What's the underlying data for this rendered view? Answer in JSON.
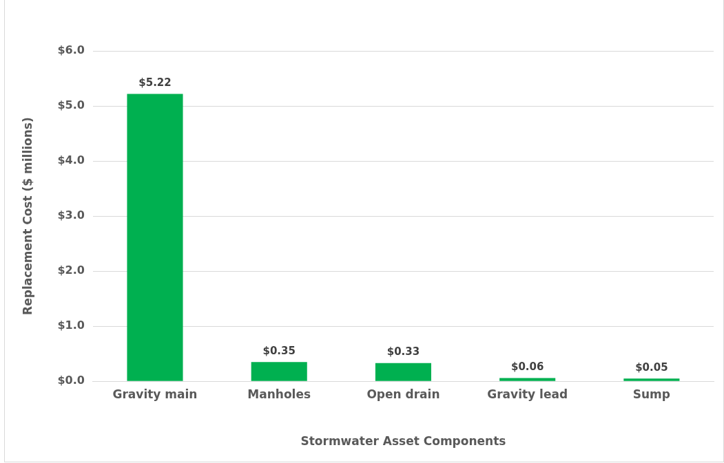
{
  "chart_data": {
    "type": "bar",
    "xlabel": "Stormwater Asset Components",
    "ylabel": "Replacement Cost ($ millions)",
    "categories": [
      "Gravity main",
      "Manholes",
      "Open drain",
      "Gravity lead",
      "Sump"
    ],
    "values": [
      5.22,
      0.35,
      0.33,
      0.06,
      0.05
    ],
    "value_labels": [
      "$5.22",
      "$0.35",
      "$0.33",
      "$0.06",
      "$0.05"
    ],
    "color": "#00b050",
    "ylim": [
      0,
      6
    ],
    "yticks": [
      {
        "value": 0,
        "label": "$0.0"
      },
      {
        "value": 1,
        "label": "$1.0"
      },
      {
        "value": 2,
        "label": "$2.0"
      },
      {
        "value": 3,
        "label": "$3.0"
      },
      {
        "value": 4,
        "label": "$4.0"
      },
      {
        "value": 5,
        "label": "$5.0"
      },
      {
        "value": 6,
        "label": "$6.0"
      }
    ],
    "grid": "y",
    "legend": false
  }
}
